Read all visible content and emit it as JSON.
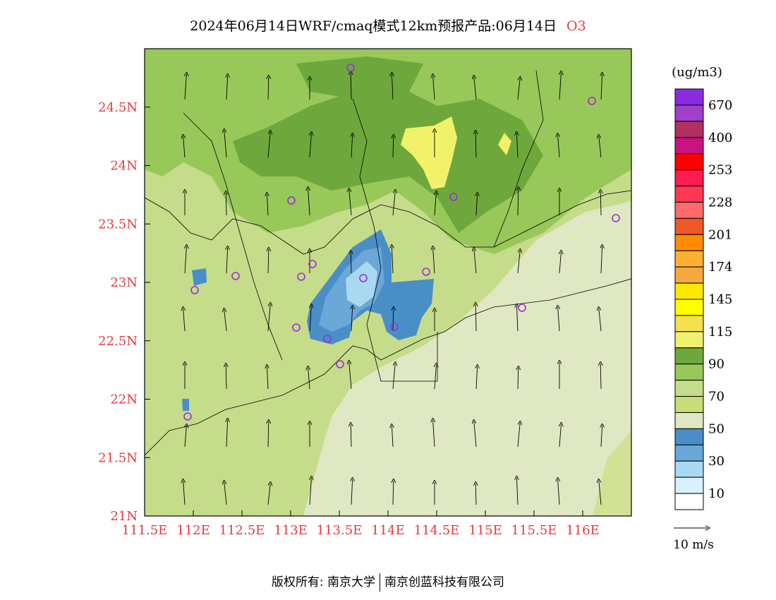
{
  "header": {
    "title": "2024年06月14日WRF/cmaq模式12km预报产品:06月14日",
    "species": "O3"
  },
  "colors": {
    "axis_label": "#e8383c",
    "sea": "#dfe8c2",
    "land_low": "#c5dc8a",
    "land_mid": "#98c85a",
    "land_high": "#6ea83d",
    "peak_yellow": "#f2f26a",
    "low_blue": "#4a8ec8",
    "lower_blue": "#6aa8d8",
    "lowest_blue": "#a9d9f0",
    "station_marker": "#9a2fd0"
  },
  "map": {
    "lon_range": [
      111.5,
      116.5
    ],
    "lat_range": [
      21.0,
      25.0
    ],
    "x_ticks": [
      "111.5E",
      "112E",
      "112.5E",
      "113E",
      "113.5E",
      "114E",
      "114.5E",
      "115E",
      "115.5E",
      "116E"
    ],
    "y_ticks": [
      "21N",
      "21.5N",
      "22N",
      "22.5N",
      "23N",
      "23.5N",
      "24N",
      "24.5N"
    ],
    "wind_direction": "south-to-north",
    "wind_reference": "10 m/s"
  },
  "legend": {
    "unit": "(ug/m3)",
    "labels": [
      "670",
      "400",
      "253",
      "228",
      "201",
      "174",
      "145",
      "115",
      "90",
      "70",
      "50",
      "30",
      "10"
    ],
    "colors": [
      "#8b2be0",
      "#a040c8",
      "#b03060",
      "#c81480",
      "#ff0000",
      "#ff1a50",
      "#ff3850",
      "#ff6a6a",
      "#f05828",
      "#ff8c00",
      "#ffb030",
      "#f5a840",
      "#ffe800",
      "#ffff00",
      "#f5e050",
      "#f0f070",
      "#6ea83d",
      "#98c85a",
      "#c5dc8a",
      "#c8dc78",
      "#dfe8c2",
      "#4a8ec8",
      "#6aa8d8",
      "#a9d9f0",
      "#daf0fa",
      "#ffffff"
    ]
  },
  "footer": {
    "copyright": "版权所有: 南京大学",
    "company": "南京创蓝科技有限公司"
  }
}
